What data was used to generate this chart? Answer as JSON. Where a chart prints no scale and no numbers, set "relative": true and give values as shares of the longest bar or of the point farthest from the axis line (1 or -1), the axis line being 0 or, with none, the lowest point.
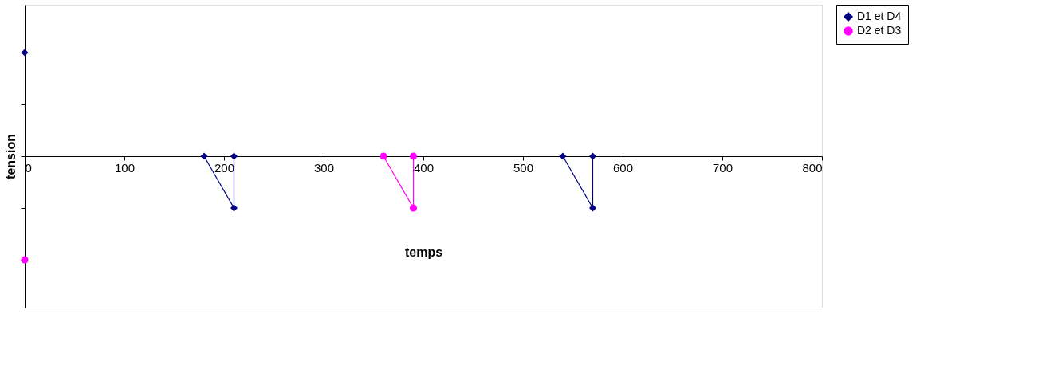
{
  "chart_data": {
    "type": "line",
    "xlabel": "temps",
    "ylabel": "tension",
    "relative": true,
    "xlim": [
      0,
      800
    ],
    "xticks": [
      0,
      100,
      200,
      300,
      400,
      500,
      600,
      700,
      800
    ],
    "series": [
      {
        "name": "D1 et D4",
        "color": "#000080",
        "marker": "diamond",
        "x": [
          0,
          90,
          180,
          210,
          210,
          390,
          540,
          570,
          570
        ],
        "values": [
          1,
          null,
          0,
          -0.5,
          0,
          null,
          0,
          -0.5,
          0
        ]
      },
      {
        "name": "D2 et D3",
        "color": "#ff00ff",
        "marker": "circle",
        "x": [
          0,
          180,
          360,
          390,
          390
        ],
        "values": [
          -1,
          null,
          0,
          -0.5,
          0
        ]
      }
    ],
    "legend": "right",
    "grid": false,
    "tick_labels": "x",
    "line_style": "solid"
  }
}
